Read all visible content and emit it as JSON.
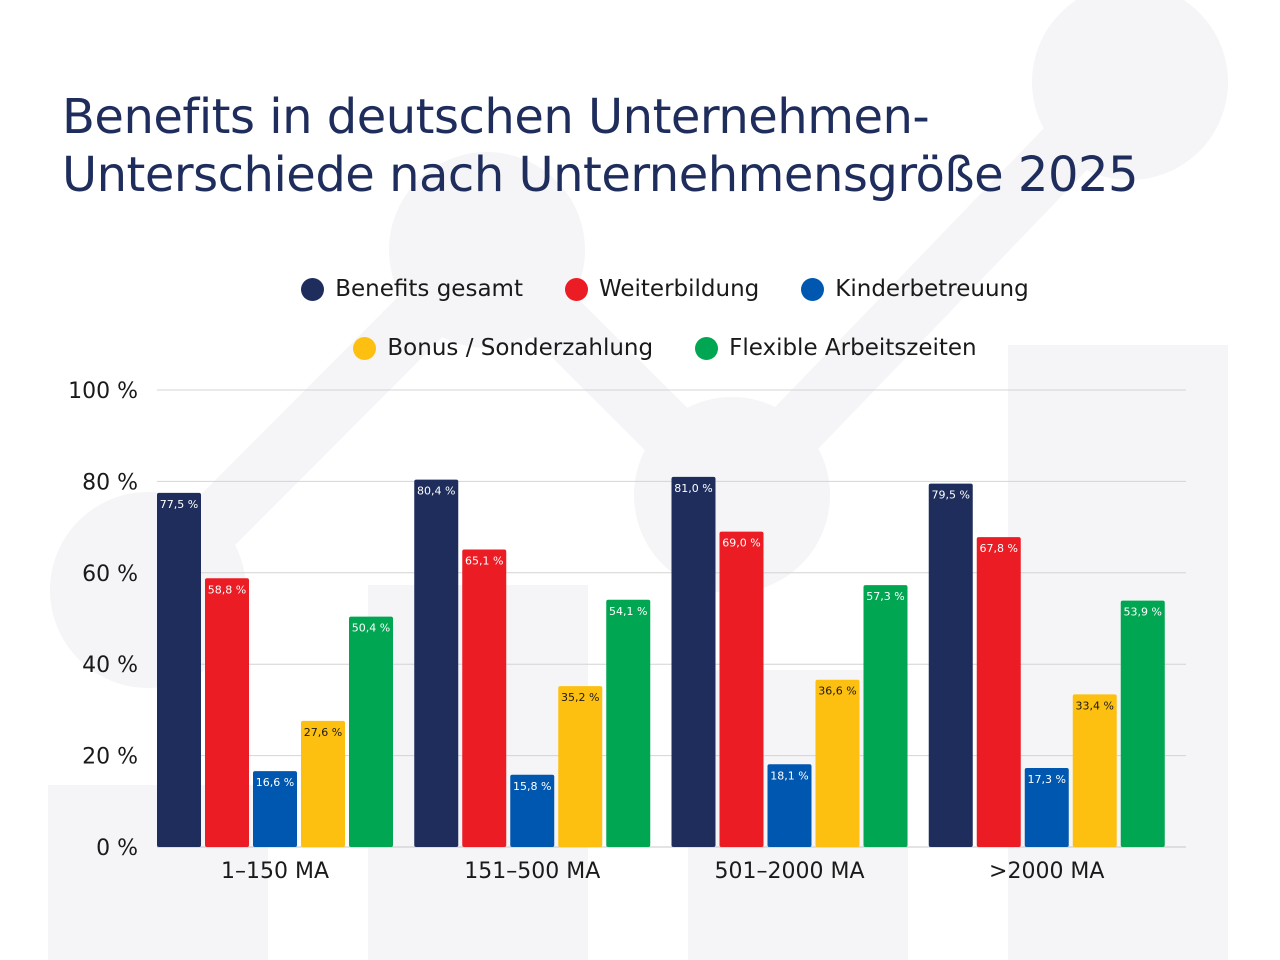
{
  "title": {
    "line1": "Benefits in deutschen Unternehmen-",
    "line2": "Unterschiede nach Unternehmensgröße 2025"
  },
  "chart_data": {
    "type": "bar",
    "title": "Benefits in deutschen Unternehmen- Unterschiede nach Unternehmensgröße 2025",
    "categories": [
      "1–150 MA",
      "151–500 MA",
      "501–2000 MA",
      ">2000 MA"
    ],
    "series": [
      {
        "name": "Benefits gesamt",
        "color": "#1f2d5c",
        "values": [
          77.5,
          80.4,
          81.0,
          79.5
        ],
        "labels": [
          "77,5 %",
          "80,4 %",
          "81,0 %",
          "79,5 %"
        ]
      },
      {
        "name": "Weiterbildung",
        "color": "#ec1c24",
        "values": [
          58.8,
          65.1,
          69.0,
          67.8
        ],
        "labels": [
          "58,8 %",
          "65,1 %",
          "69,0 %",
          "67,8 %"
        ]
      },
      {
        "name": "Kinderbetreuung",
        "color": "#0057b0",
        "values": [
          16.6,
          15.8,
          18.1,
          17.3
        ],
        "labels": [
          "16,6 %",
          "15,8 %",
          "18,1 %",
          "17,3 %"
        ]
      },
      {
        "name": "Bonus / Sonderzahlung",
        "color": "#fdc010",
        "values": [
          27.6,
          35.2,
          36.6,
          33.4
        ],
        "labels": [
          "27,6 %",
          "35,2 %",
          "36,6 %",
          "33,4 %"
        ]
      },
      {
        "name": "Flexible Arbeitszeiten",
        "color": "#00a651",
        "values": [
          50.4,
          54.1,
          57.3,
          53.9
        ],
        "labels": [
          "50,4 %",
          "54,1 %",
          "57,3 %",
          "53,9 %"
        ]
      }
    ],
    "ylim": [
      0,
      100
    ],
    "yticks": [
      0,
      20,
      40,
      60,
      80,
      100
    ],
    "ytick_labels": [
      "0 %",
      "20 %",
      "40 %",
      "60 %",
      "80 %",
      "100 %"
    ],
    "xlabel": "",
    "ylabel": "",
    "grid": true,
    "legend_position": "top-center"
  }
}
